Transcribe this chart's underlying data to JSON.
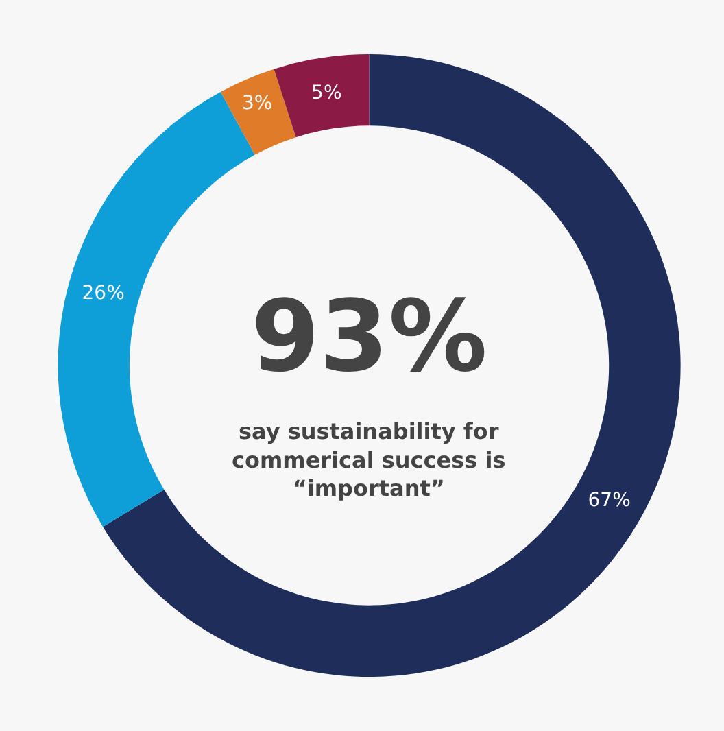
{
  "chart_data": {
    "type": "donut",
    "categories": [
      null,
      null,
      null,
      null
    ],
    "values": [
      67,
      26,
      3,
      5
    ],
    "colors": [
      "#1e2d5a",
      "#0e9ed8",
      "#e07b2a",
      "#8b1a45"
    ],
    "value_labels": [
      "67%",
      "26%",
      "3%",
      "5%"
    ],
    "annotations": [
      "93%",
      "say sustainability for commerical success is “important”"
    ],
    "legend": false
  }
}
